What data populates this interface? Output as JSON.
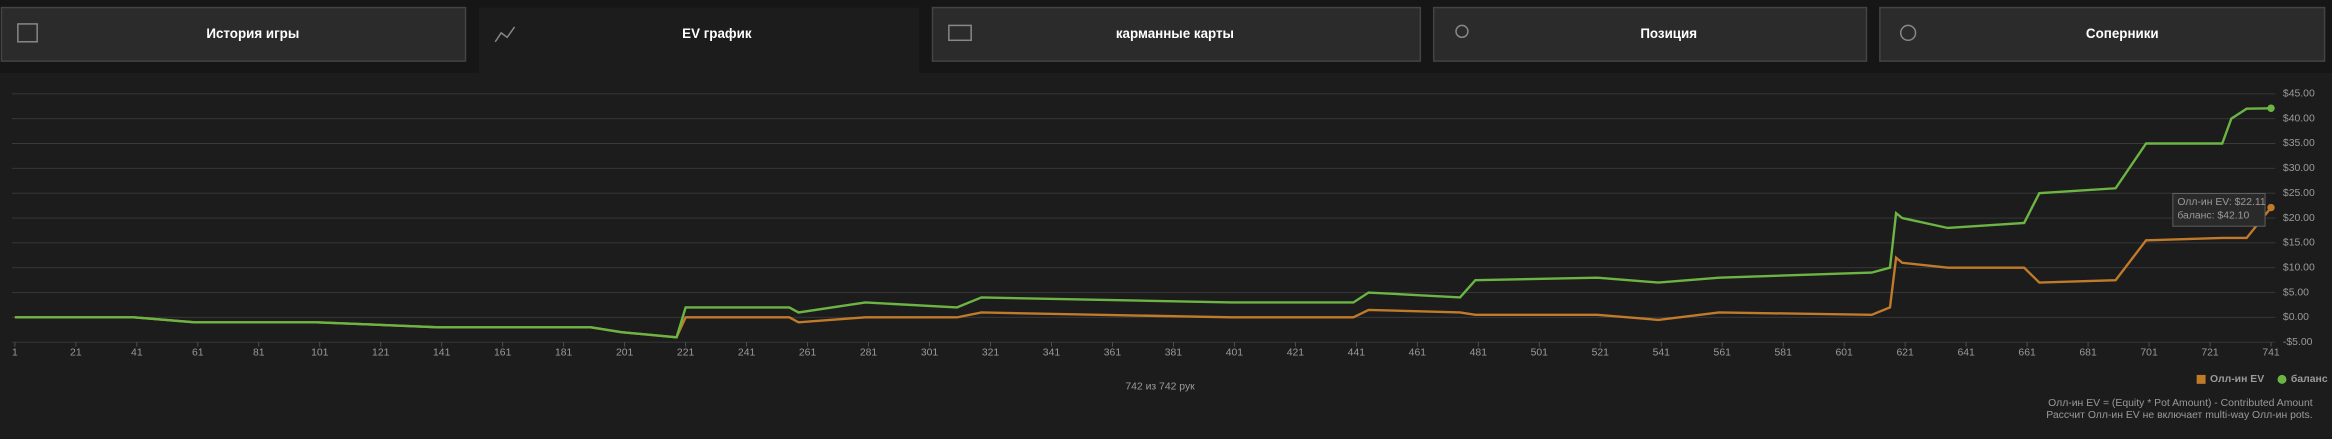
{
  "tabs": [
    "История игры",
    "EV график",
    "карманные карты",
    "Позиция",
    "Соперники"
  ],
  "chart_data": {
    "type": "line",
    "x": [
      1,
      40,
      60,
      100,
      140,
      190,
      200,
      218,
      221,
      255,
      258,
      280,
      310,
      318,
      400,
      440,
      445,
      475,
      480,
      520,
      540,
      560,
      610,
      616,
      618,
      620,
      635,
      660,
      665,
      690,
      700,
      725,
      728,
      733,
      741
    ],
    "series": [
      {
        "name": "Олл-ин EV",
        "color": "#c07a2a",
        "values": [
          0,
          0,
          -1,
          -1,
          -2,
          -2,
          -3,
          -4,
          0,
          0,
          -1,
          0,
          0,
          1,
          0,
          0,
          1.5,
          1,
          0.5,
          0.5,
          -0.5,
          1,
          0.5,
          2,
          12,
          11,
          10,
          10,
          7,
          7.5,
          15.5,
          16,
          16,
          16,
          22.11
        ]
      },
      {
        "name": "баланс",
        "color": "#6cb544",
        "values": [
          0,
          0,
          -1,
          -1,
          -2,
          -2,
          -3,
          -4,
          2,
          2,
          1,
          3,
          2,
          4,
          3,
          3,
          5,
          4,
          7.5,
          8,
          7,
          8,
          9,
          10,
          21,
          20,
          18,
          19,
          25,
          26,
          35,
          35,
          40,
          42,
          42.1
        ]
      }
    ],
    "xlim": [
      1,
      741
    ],
    "xticks": [
      1,
      21,
      41,
      61,
      81,
      101,
      121,
      141,
      161,
      181,
      201,
      221,
      241,
      261,
      281,
      301,
      321,
      341,
      361,
      381,
      401,
      421,
      441,
      461,
      481,
      501,
      521,
      541,
      561,
      581,
      601,
      621,
      641,
      661,
      681,
      701,
      721,
      741
    ],
    "ylim": [
      -5,
      45
    ],
    "yticks": [
      {
        "value": -5,
        "label": "-$5.00"
      },
      {
        "value": 0,
        "label": "$0.00"
      },
      {
        "value": 5,
        "label": "$5.00"
      },
      {
        "value": 10,
        "label": "$10.00"
      },
      {
        "value": 15,
        "label": "$15.00"
      },
      {
        "value": 20,
        "label": "$20.00"
      },
      {
        "value": 25,
        "label": "$25.00"
      },
      {
        "value": 30,
        "label": "$30.00"
      },
      {
        "value": 35,
        "label": "$35.00"
      },
      {
        "value": 40,
        "label": "$40.00"
      },
      {
        "value": 45,
        "label": "$45.00"
      }
    ],
    "grid": true,
    "legend": "bottom-right",
    "tooltip": [
      "Олл-ин EV: $22.11",
      "баланс: $42.10"
    ]
  },
  "hand_count": "742 из 742 рук",
  "notes": [
    "Олл-ин EV = (Equity * Pot Amount) - Contributed Amount",
    "Рассчит Олл-ин EV не включает multi-way Олл-ин pots."
  ]
}
